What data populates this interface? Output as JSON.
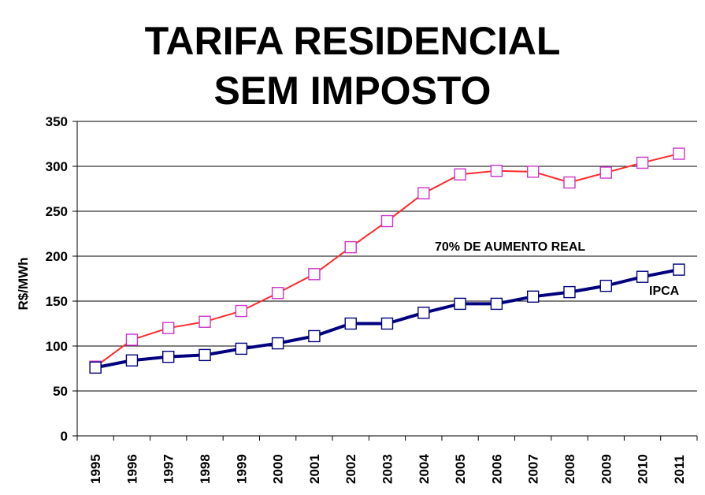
{
  "chart_data": {
    "type": "line",
    "title_line1": "TARIFA RESIDENCIAL",
    "title_line2": "SEM IMPOSTO",
    "ylabel": "R$/MWh",
    "xlabel": "",
    "ylim": [
      0,
      350
    ],
    "yticks": [
      0,
      50,
      100,
      150,
      200,
      250,
      300,
      350
    ],
    "grid": true,
    "categories": [
      "1995",
      "1996",
      "1997",
      "1998",
      "1999",
      "2000",
      "2001",
      "2002",
      "2003",
      "2004",
      "2005",
      "2006",
      "2007",
      "2008",
      "2009",
      "2010",
      "2011"
    ],
    "series": [
      {
        "values": [
          77,
          107,
          120,
          127,
          139,
          159,
          180,
          210,
          239,
          270,
          291,
          295,
          294,
          282,
          293,
          304,
          314
        ],
        "line_color": "#ff2a2a",
        "marker_color": "#cc33cc"
      },
      {
        "name": "IPCA",
        "values": [
          76,
          84,
          88,
          90,
          97,
          103,
          111,
          125,
          125,
          137,
          147,
          147,
          155,
          160,
          167,
          177,
          185
        ],
        "line_color": "#00007f",
        "marker_color": "#00007f"
      }
    ],
    "annotations": [
      {
        "text": "70% DE AUMENTO REAL"
      },
      {
        "text": "IPCA"
      }
    ]
  }
}
